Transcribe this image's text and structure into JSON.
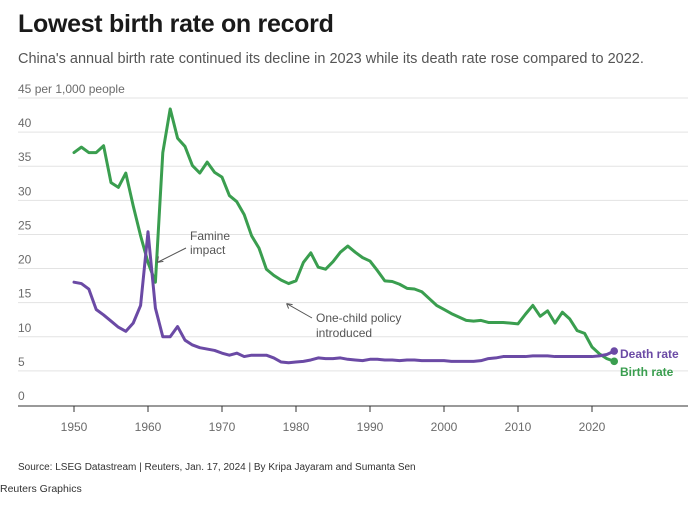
{
  "header": {
    "title": "Lowest birth rate on record",
    "subtitle": "China's annual birth rate continued its decline in 2023 while its death rate rose compared to 2022."
  },
  "footer": {
    "source": "Source: LSEG Datastream | Reuters, Jan. 17, 2024 | By Kripa Jayaram and Sumanta Sen",
    "credit": "Reuters Graphics"
  },
  "chart_data": {
    "type": "line",
    "title": "Lowest birth rate on record",
    "subtitle": "China's annual birth rate continued its decline in 2023 while its death rate rose compared to 2022.",
    "xlabel": "",
    "ylabel": "per 1,000 people",
    "xlim": [
      1945,
      2033
    ],
    "ylim": [
      0,
      45
    ],
    "yticks": [
      0,
      5,
      10,
      15,
      20,
      25,
      30,
      35,
      40,
      45
    ],
    "xticks": [
      1950,
      1960,
      1970,
      1980,
      1990,
      2000,
      2010,
      2020
    ],
    "grid": "horizontal",
    "series": [
      {
        "name": "Birth rate",
        "color": "#3a9e4f",
        "x": [
          1950,
          1951,
          1952,
          1953,
          1954,
          1955,
          1956,
          1957,
          1958,
          1959,
          1960,
          1961,
          1962,
          1963,
          1964,
          1965,
          1966,
          1967,
          1968,
          1969,
          1970,
          1971,
          1972,
          1973,
          1974,
          1975,
          1976,
          1977,
          1978,
          1979,
          1980,
          1981,
          1982,
          1983,
          1984,
          1985,
          1986,
          1987,
          1988,
          1989,
          1990,
          1991,
          1992,
          1993,
          1994,
          1995,
          1996,
          1997,
          1998,
          1999,
          2000,
          2001,
          2002,
          2003,
          2004,
          2005,
          2006,
          2007,
          2008,
          2009,
          2010,
          2011,
          2012,
          2013,
          2014,
          2015,
          2016,
          2017,
          2018,
          2019,
          2020,
          2021,
          2022,
          2023
        ],
        "values": [
          37.0,
          37.8,
          37.0,
          37.0,
          38.0,
          32.6,
          31.9,
          34.0,
          29.2,
          24.8,
          20.9,
          18.0,
          37.0,
          43.4,
          39.1,
          37.9,
          35.1,
          34.0,
          35.6,
          34.1,
          33.4,
          30.7,
          29.8,
          27.9,
          24.8,
          23.0,
          19.9,
          19.0,
          18.3,
          17.8,
          18.2,
          20.9,
          22.3,
          20.2,
          19.9,
          21.0,
          22.4,
          23.3,
          22.4,
          21.6,
          21.1,
          19.7,
          18.2,
          18.1,
          17.7,
          17.1,
          17.0,
          16.6,
          15.6,
          14.6,
          14.0,
          13.4,
          12.9,
          12.4,
          12.3,
          12.4,
          12.1,
          12.1,
          12.1,
          12.0,
          11.9,
          13.3,
          14.6,
          13.0,
          13.8,
          12.0,
          13.6,
          12.6,
          10.9,
          10.5,
          8.5,
          7.5,
          6.8,
          6.4
        ]
      },
      {
        "name": "Death rate",
        "color": "#6b4aa5",
        "x": [
          1950,
          1951,
          1952,
          1953,
          1954,
          1955,
          1956,
          1957,
          1958,
          1959,
          1960,
          1961,
          1962,
          1963,
          1964,
          1965,
          1966,
          1967,
          1968,
          1969,
          1970,
          1971,
          1972,
          1973,
          1974,
          1975,
          1976,
          1977,
          1978,
          1979,
          1980,
          1981,
          1982,
          1983,
          1984,
          1985,
          1986,
          1987,
          1988,
          1989,
          1990,
          1991,
          1992,
          1993,
          1994,
          1995,
          1996,
          1997,
          1998,
          1999,
          2000,
          2001,
          2002,
          2003,
          2004,
          2005,
          2006,
          2007,
          2008,
          2009,
          2010,
          2011,
          2012,
          2013,
          2014,
          2015,
          2016,
          2017,
          2018,
          2019,
          2020,
          2021,
          2022,
          2023
        ],
        "values": [
          18.0,
          17.8,
          17.0,
          14.0,
          13.2,
          12.3,
          11.4,
          10.8,
          12.0,
          14.6,
          25.4,
          14.2,
          10.0,
          10.0,
          11.5,
          9.5,
          8.8,
          8.4,
          8.2,
          8.0,
          7.6,
          7.3,
          7.6,
          7.1,
          7.3,
          7.3,
          7.3,
          6.9,
          6.3,
          6.2,
          6.3,
          6.4,
          6.6,
          6.9,
          6.8,
          6.8,
          6.9,
          6.7,
          6.6,
          6.5,
          6.7,
          6.7,
          6.6,
          6.6,
          6.5,
          6.6,
          6.6,
          6.5,
          6.5,
          6.5,
          6.5,
          6.4,
          6.4,
          6.4,
          6.4,
          6.5,
          6.8,
          6.9,
          7.1,
          7.1,
          7.1,
          7.1,
          7.2,
          7.2,
          7.2,
          7.1,
          7.1,
          7.1,
          7.1,
          7.1,
          7.1,
          7.2,
          7.4,
          7.9
        ]
      }
    ],
    "annotations": [
      {
        "lines": [
          "Famine",
          "impact"
        ],
        "x": 1961,
        "y": 21.2
      },
      {
        "lines": [
          "One-child policy",
          "introduced"
        ],
        "x": 1979,
        "y": 15.3
      }
    ],
    "unit_label": "per 1,000 people",
    "top_tick_label": "45"
  }
}
